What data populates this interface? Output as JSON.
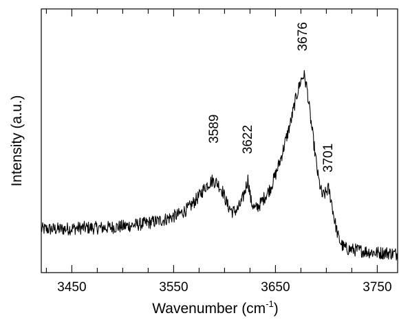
{
  "chart_data": {
    "type": "line",
    "title": "",
    "xlabel": "Wavenumber (cm",
    "xlabel_sup": "-1",
    "xlabel_end": ")",
    "ylabel": "Intensity (a.u.)",
    "xlim": [
      3420,
      3770
    ],
    "ylim": [
      0,
      1
    ],
    "x_ticks": [
      3450,
      3550,
      3650,
      3750
    ],
    "x_tick_labels": [
      "3450",
      "3550",
      "3650",
      "3750"
    ],
    "y_tick_labels_shown": false,
    "grid": false,
    "legend": "none",
    "line_color": "#000000",
    "noise_amplitude": 0.025,
    "peak_labels": [
      {
        "text": "3589",
        "x": 3589,
        "y": 0.49
      },
      {
        "text": "3622",
        "x": 3622,
        "y": 0.45
      },
      {
        "text": "3676",
        "x": 3676,
        "y": 0.84
      },
      {
        "text": "3701",
        "x": 3701,
        "y": 0.38
      }
    ],
    "series": [
      {
        "x": [
          3420,
          3440,
          3460,
          3480,
          3500,
          3520,
          3540,
          3555,
          3565,
          3575,
          3582,
          3588,
          3593,
          3598,
          3603,
          3608,
          3613,
          3617,
          3620,
          3623,
          3626,
          3630,
          3635,
          3640,
          3645,
          3650,
          3655,
          3660,
          3665,
          3670,
          3675,
          3678,
          3681,
          3684,
          3688,
          3692,
          3696,
          3699,
          3702,
          3705,
          3708,
          3712,
          3716,
          3720,
          3730,
          3740,
          3750,
          3760,
          3770
        ],
        "y": [
          0.165,
          0.165,
          0.17,
          0.17,
          0.175,
          0.185,
          0.2,
          0.22,
          0.245,
          0.29,
          0.33,
          0.35,
          0.34,
          0.31,
          0.255,
          0.23,
          0.24,
          0.27,
          0.31,
          0.355,
          0.27,
          0.24,
          0.26,
          0.29,
          0.32,
          0.37,
          0.43,
          0.5,
          0.57,
          0.66,
          0.73,
          0.75,
          0.7,
          0.6,
          0.48,
          0.36,
          0.29,
          0.3,
          0.32,
          0.27,
          0.2,
          0.13,
          0.1,
          0.09,
          0.085,
          0.08,
          0.075,
          0.075,
          0.07
        ]
      }
    ]
  }
}
